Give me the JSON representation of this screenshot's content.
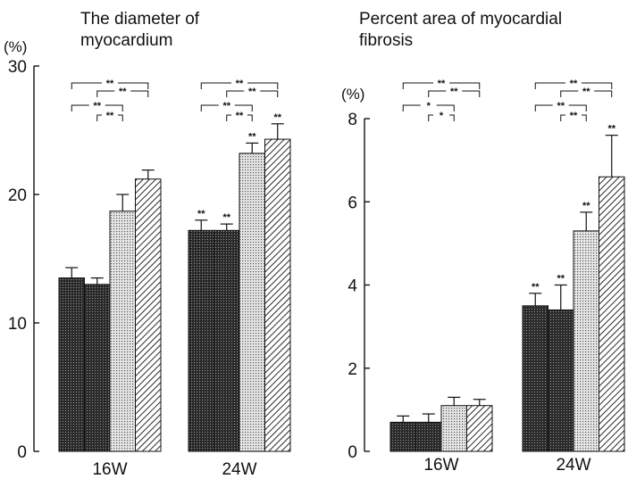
{
  "chart_data": [
    {
      "type": "bar",
      "title": "The diameter of\nmyocardium",
      "ylabel": "(%)",
      "ylim": [
        0,
        30
      ],
      "yticks": [
        0,
        10,
        20,
        30
      ],
      "categories": [
        "16W",
        "24W"
      ],
      "series": [
        {
          "pattern": "dense-dots",
          "values": [
            13.5,
            17.2
          ],
          "errors": [
            0.8,
            0.8
          ],
          "marks": [
            "",
            "**"
          ]
        },
        {
          "pattern": "dense-dots",
          "values": [
            13.0,
            17.2
          ],
          "errors": [
            0.5,
            0.5
          ],
          "marks": [
            "",
            "**"
          ]
        },
        {
          "pattern": "light-dots",
          "values": [
            18.7,
            23.2
          ],
          "errors": [
            1.3,
            0.8
          ],
          "marks": [
            "",
            "**"
          ]
        },
        {
          "pattern": "diagonal-hatch",
          "values": [
            21.2,
            24.3
          ],
          "errors": [
            0.7,
            1.2
          ],
          "marks": [
            "",
            "**"
          ]
        }
      ],
      "comparisons": [
        {
          "groups": [
            {
              "from": 0,
              "to": 3,
              "label": "**"
            },
            {
              "from": 1,
              "to": 3,
              "label": "**"
            },
            {
              "from": 0,
              "to": 2,
              "label": "**"
            },
            {
              "from": 1,
              "to": 2,
              "label": "**"
            }
          ]
        },
        {
          "groups": [
            {
              "from": 0,
              "to": 3,
              "label": "**"
            },
            {
              "from": 1,
              "to": 3,
              "label": "**"
            },
            {
              "from": 0,
              "to": 2,
              "label": "**"
            },
            {
              "from": 1,
              "to": 2,
              "label": "**"
            }
          ]
        }
      ]
    },
    {
      "type": "bar",
      "title": "Percent area of myocardial\nfibrosis",
      "ylabel": "(%)",
      "ylim": [
        0,
        8
      ],
      "yticks": [
        0,
        2,
        4,
        6,
        8
      ],
      "categories": [
        "16W",
        "24W"
      ],
      "series": [
        {
          "pattern": "dense-dots",
          "values": [
            0.7,
            3.5
          ],
          "errors": [
            0.15,
            0.3
          ],
          "marks": [
            "",
            "**"
          ]
        },
        {
          "pattern": "dense-dots",
          "values": [
            0.7,
            3.4
          ],
          "errors": [
            0.2,
            0.6
          ],
          "marks": [
            "",
            "**"
          ]
        },
        {
          "pattern": "light-dots",
          "values": [
            1.1,
            5.3
          ],
          "errors": [
            0.2,
            0.45
          ],
          "marks": [
            "",
            "**"
          ]
        },
        {
          "pattern": "diagonal-hatch",
          "values": [
            1.1,
            6.6
          ],
          "errors": [
            0.15,
            1.0
          ],
          "marks": [
            "",
            "**"
          ]
        }
      ],
      "comparisons": [
        {
          "groups": [
            {
              "from": 0,
              "to": 3,
              "label": "**"
            },
            {
              "from": 1,
              "to": 3,
              "label": "**"
            },
            {
              "from": 0,
              "to": 2,
              "label": "*"
            },
            {
              "from": 1,
              "to": 2,
              "label": "*"
            }
          ]
        },
        {
          "groups": [
            {
              "from": 0,
              "to": 3,
              "label": "**"
            },
            {
              "from": 1,
              "to": 3,
              "label": "**"
            },
            {
              "from": 0,
              "to": 2,
              "label": "**"
            },
            {
              "from": 1,
              "to": 2,
              "label": "**"
            }
          ]
        }
      ]
    }
  ]
}
